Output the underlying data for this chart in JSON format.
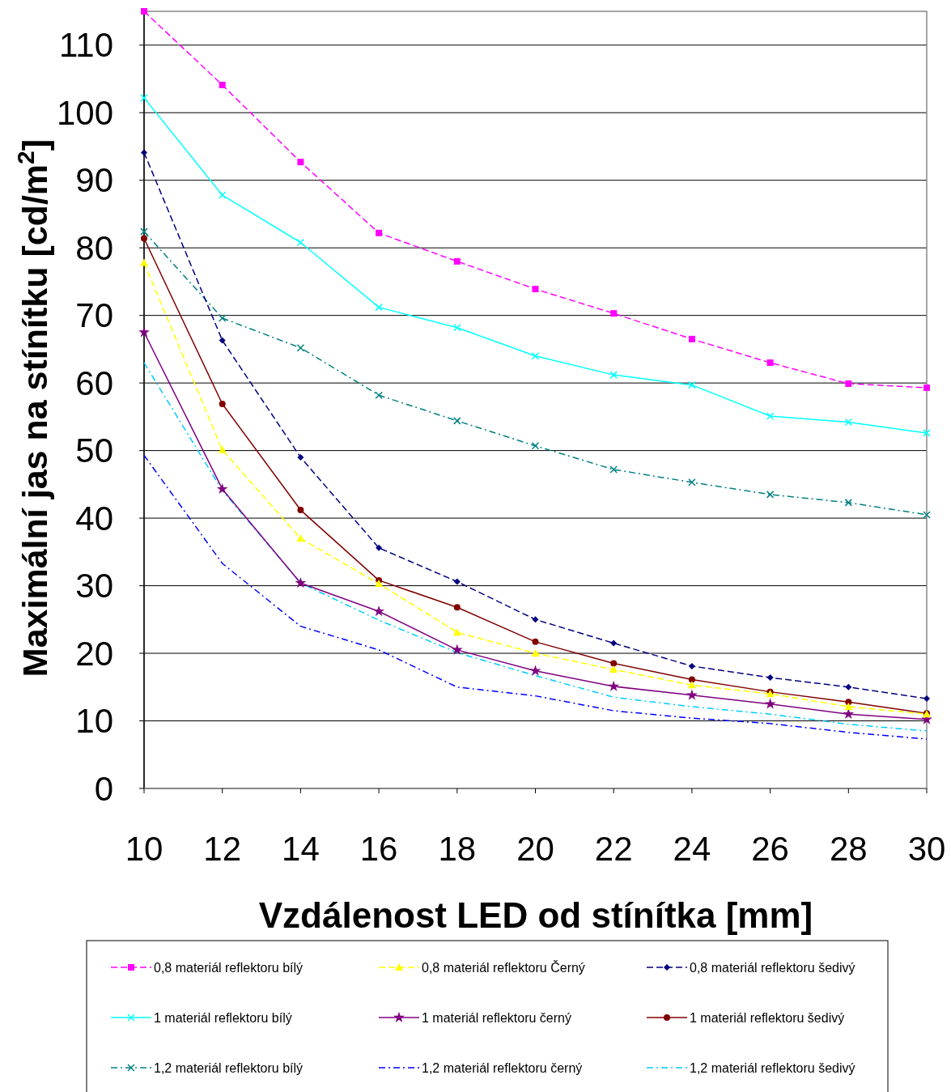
{
  "chart_data": {
    "type": "line",
    "xlabel": "Vzdálenost   LED od stínítka [mm]",
    "ylabel": "Maximální  jas   na  stínítku [cd/m$^{2}$]",
    "x": [
      10,
      12,
      14,
      16,
      18,
      20,
      22,
      24,
      26,
      28,
      30
    ],
    "xlim": [
      10,
      30
    ],
    "xticks": [
      10,
      12,
      14,
      16,
      18,
      20,
      22,
      24,
      26,
      28,
      30
    ],
    "ylim": [
      0,
      115
    ],
    "yticks": [
      0,
      10,
      20,
      30,
      40,
      50,
      60,
      70,
      80,
      90,
      100,
      110
    ],
    "grid": "y",
    "legend": "bottom",
    "series": [
      {
        "name": "0,8 materiál reflektoru bílý",
        "color": "#ff00ff",
        "marker": "square",
        "line_style": "dashed",
        "values": [
          115.0,
          104.1,
          92.7,
          82.2,
          78.0,
          73.9,
          70.3,
          66.5,
          63.0,
          59.9,
          59.3
        ]
      },
      {
        "name": "0,8 materiál reflektoru Černý",
        "color": "#ffff00",
        "marker": "triangle",
        "line_style": "dashed",
        "values": [
          77.8,
          50.1,
          37.0,
          30.3,
          23.1,
          20.0,
          17.6,
          15.3,
          14.0,
          12.1,
          11.0
        ]
      },
      {
        "name": "0,8 materiál reflektoru šedivý",
        "color": "#000080",
        "marker": "diamond",
        "line_style": "dashed",
        "values": [
          94.1,
          66.3,
          49.0,
          35.6,
          30.6,
          25.0,
          21.5,
          18.1,
          16.4,
          15.0,
          13.3
        ]
      },
      {
        "name": "1 materiál reflektoru bílý",
        "color": "#00ffff",
        "marker": "cross",
        "line_style": "solid",
        "values": [
          102.2,
          87.8,
          80.8,
          71.2,
          68.2,
          64.0,
          61.2,
          59.7,
          55.1,
          54.2,
          52.6
        ]
      },
      {
        "name": "1 materiál reflektoru černý",
        "color": "#800080",
        "marker": "star",
        "line_style": "solid",
        "values": [
          67.5,
          44.3,
          30.4,
          26.2,
          20.5,
          17.4,
          15.1,
          13.8,
          12.5,
          11.0,
          10.2
        ]
      },
      {
        "name": "1 materiál reflektoru šedivý",
        "color": "#800000",
        "marker": "circle",
        "line_style": "solid",
        "values": [
          81.4,
          56.9,
          41.2,
          30.8,
          26.8,
          21.7,
          18.5,
          16.1,
          14.3,
          12.8,
          11.1
        ]
      },
      {
        "name": "1,2 materiál reflektoru bílý",
        "color": "#008080",
        "marker": "cross",
        "line_style": "dotted",
        "values": [
          82.4,
          69.6,
          65.2,
          58.2,
          54.4,
          50.7,
          47.2,
          45.3,
          43.5,
          42.3,
          40.5
        ]
      },
      {
        "name": "1,2 materiál reflektoru černý",
        "color": "#0000ff",
        "marker": "none",
        "line_style": "dotted",
        "values": [
          49.3,
          33.3,
          24.0,
          20.5,
          15.0,
          13.7,
          11.5,
          10.4,
          9.6,
          8.3,
          7.3
        ]
      },
      {
        "name": "1,2 materiál reflektoru šedivý",
        "color": "#00ccff",
        "marker": "none",
        "line_style": "dotted",
        "values": [
          63.0,
          44.1,
          30.4,
          24.9,
          20.1,
          16.7,
          13.5,
          12.1,
          11.0,
          9.5,
          8.5
        ]
      }
    ]
  }
}
